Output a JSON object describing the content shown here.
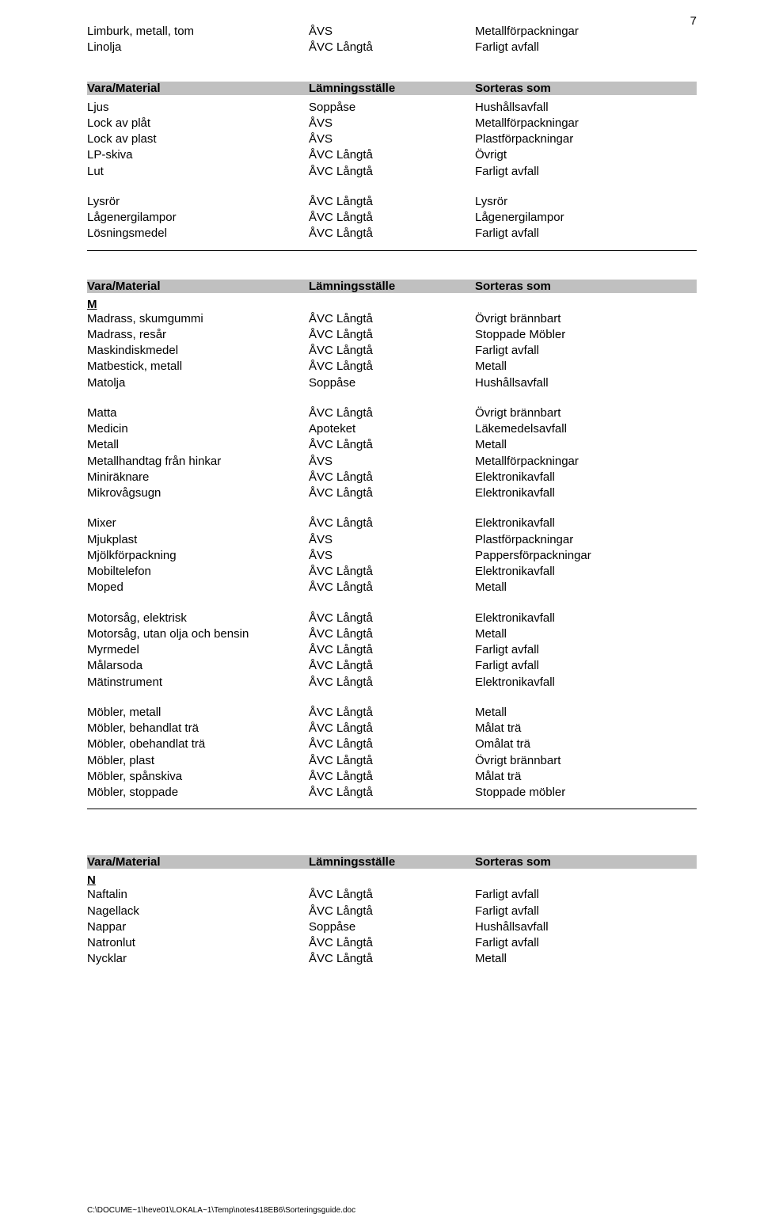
{
  "page_number": "7",
  "footer_text": "C:\\DOCUME~1\\heve01\\LOKALA~1\\Temp\\notes418EB6\\Sorteringsguide.doc",
  "header": {
    "col1": "Vara/Material",
    "col2": "Lämningsställe",
    "col3": "Sorteras som"
  },
  "top_block": [
    [
      "Limburk, metall, tom",
      "ÅVS",
      "Metallförpackningar"
    ],
    [
      "Linolja",
      "ÅVC Långtå",
      "Farligt avfall"
    ]
  ],
  "l_block1": [
    [
      "Ljus",
      "Soppåse",
      "Hushållsavfall"
    ],
    [
      "Lock av plåt",
      "ÅVS",
      "Metallförpackningar"
    ],
    [
      "Lock av plast",
      "ÅVS",
      "Plastförpackningar"
    ],
    [
      "LP-skiva",
      "ÅVC Långtå",
      "Övrigt"
    ],
    [
      "Lut",
      "ÅVC Långtå",
      "Farligt avfall"
    ]
  ],
  "l_block2": [
    [
      "Lysrör",
      "ÅVC Långtå",
      "Lysrör"
    ],
    [
      "Lågenergilampor",
      "ÅVC Långtå",
      "Lågenergilampor"
    ],
    [
      "Lösningsmedel",
      "ÅVC Långtå",
      "Farligt avfall"
    ]
  ],
  "m_letter": "M",
  "m_block1": [
    [
      "Madrass, skumgummi",
      "ÅVC Långtå",
      "Övrigt brännbart"
    ],
    [
      "Madrass, resår",
      "ÅVC Långtå",
      "Stoppade Möbler"
    ],
    [
      "Maskindiskmedel",
      "ÅVC Långtå",
      "Farligt avfall"
    ],
    [
      "Matbestick, metall",
      "ÅVC Långtå",
      "Metall"
    ],
    [
      "Matolja",
      "Soppåse",
      "Hushållsavfall"
    ]
  ],
  "m_block2": [
    [
      "Matta",
      "ÅVC Långtå",
      "Övrigt brännbart"
    ],
    [
      "Medicin",
      "Apoteket",
      "Läkemedelsavfall"
    ],
    [
      "Metall",
      "ÅVC Långtå",
      "Metall"
    ],
    [
      "Metallhandtag från hinkar",
      "ÅVS",
      "Metallförpackningar"
    ],
    [
      "Miniräknare",
      "ÅVC Långtå",
      "Elektronikavfall"
    ],
    [
      "Mikrovågsugn",
      "ÅVC Långtå",
      "Elektronikavfall"
    ]
  ],
  "m_block3": [
    [
      "Mixer",
      "ÅVC Långtå",
      "Elektronikavfall"
    ],
    [
      "Mjukplast",
      "ÅVS",
      "Plastförpackningar"
    ],
    [
      "Mjölkförpackning",
      "ÅVS",
      "Pappersförpackningar"
    ],
    [
      "Mobiltelefon",
      "ÅVC Långtå",
      "Elektronikavfall"
    ],
    [
      "Moped",
      "ÅVC Långtå",
      "Metall"
    ]
  ],
  "m_block4": [
    [
      "Motorsåg, elektrisk",
      "ÅVC Långtå",
      "Elektronikavfall"
    ],
    [
      "Motorsåg, utan olja och bensin",
      "ÅVC Långtå",
      "Metall"
    ],
    [
      "Myrmedel",
      "ÅVC Långtå",
      "Farligt avfall"
    ],
    [
      "Målarsoda",
      "ÅVC Långtå",
      "Farligt avfall"
    ],
    [
      "Mätinstrument",
      "ÅVC Långtå",
      "Elektronikavfall"
    ]
  ],
  "m_block5": [
    [
      "Möbler, metall",
      "ÅVC Långtå",
      "Metall"
    ],
    [
      "Möbler, behandlat trä",
      "ÅVC Långtå",
      "Målat trä"
    ],
    [
      "Möbler, obehandlat trä",
      "ÅVC Långtå",
      "Omålat trä"
    ],
    [
      "Möbler, plast",
      "ÅVC Långtå",
      "Övrigt brännbart"
    ],
    [
      "Möbler, spånskiva",
      "ÅVC Långtå",
      "Målat trä"
    ],
    [
      "Möbler, stoppade",
      "ÅVC Långtå",
      "Stoppade möbler"
    ]
  ],
  "n_letter": "N",
  "n_block1": [
    [
      "Naftalin",
      "ÅVC Långtå",
      "Farligt avfall"
    ],
    [
      "Nagellack",
      "ÅVC Långtå",
      "Farligt avfall"
    ],
    [
      "Nappar",
      "Soppåse",
      "Hushållsavfall"
    ],
    [
      "Natronlut",
      "ÅVC Långtå",
      "Farligt avfall"
    ],
    [
      "Nycklar",
      "ÅVC Långtå",
      "Metall"
    ]
  ]
}
